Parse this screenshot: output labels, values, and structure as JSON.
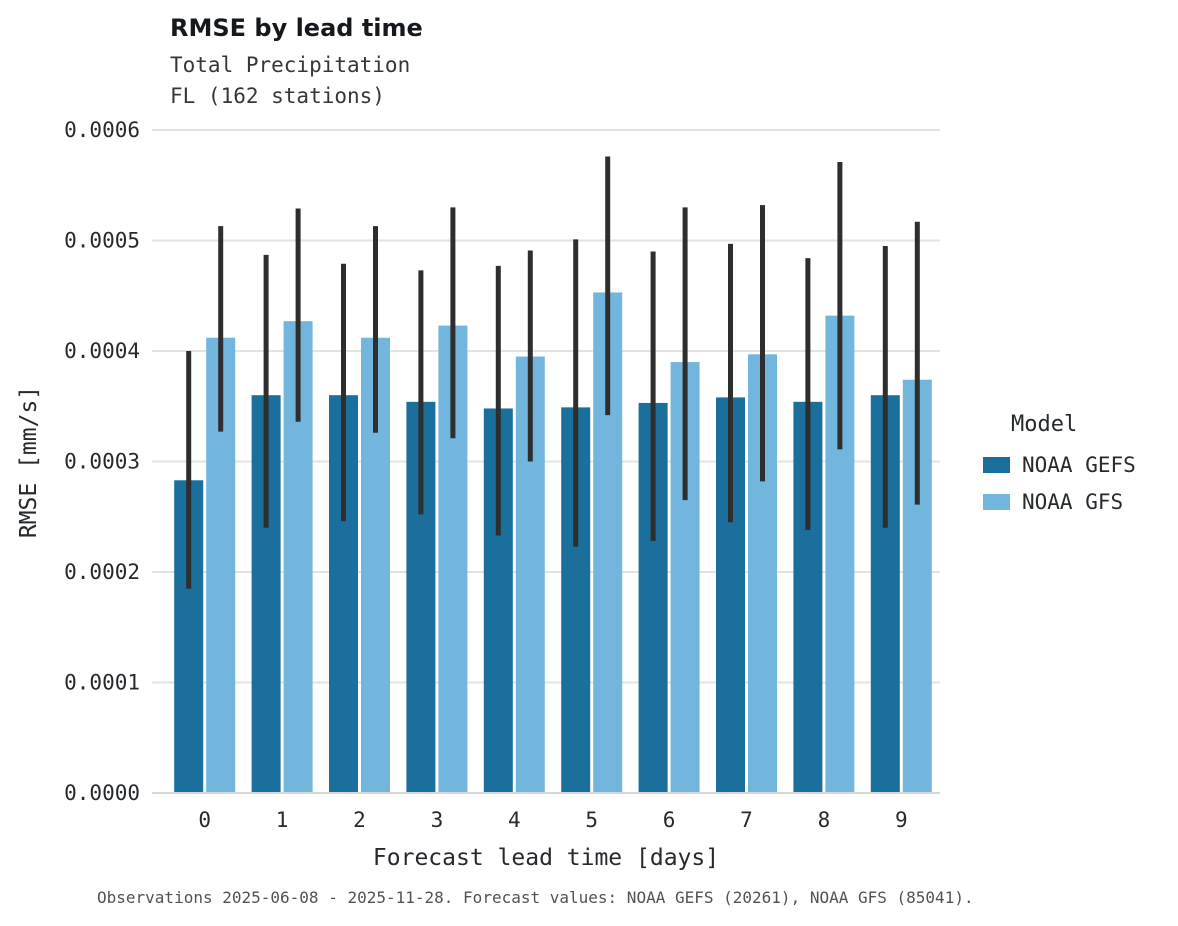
{
  "header": {
    "title": "RMSE by lead time",
    "subtitle1": "Total Precipitation",
    "subtitle2": "FL (162 stations)"
  },
  "legend": {
    "title": "Model",
    "entries": [
      {
        "label": "NOAA GEFS",
        "color": "#1a6f9c"
      },
      {
        "label": "NOAA GFS",
        "color": "#73b6dd"
      }
    ]
  },
  "caption": "Observations 2025-06-08 - 2025-11-28. Forecast values: NOAA GEFS (20261), NOAA GFS (85041).",
  "style": {
    "grid_color": "#e3e3e3",
    "axis_color": "#d6d6d6",
    "errorbar_color": "#2e2e2e",
    "background": "#ffffff"
  },
  "chart_data": {
    "type": "bar",
    "title": "RMSE by lead time",
    "xlabel": "Forecast lead time [days]",
    "ylabel": "RMSE [mm/s]",
    "categories": [
      "0",
      "1",
      "2",
      "3",
      "4",
      "5",
      "6",
      "7",
      "8",
      "9"
    ],
    "ylim": [
      0,
      0.0006
    ],
    "yticks": [
      0,
      0.0001,
      0.0002,
      0.0003,
      0.0004,
      0.0005,
      0.0006
    ],
    "grid": true,
    "legend_position": "right",
    "series": [
      {
        "name": "NOAA GEFS",
        "color": "#1a6f9c",
        "values": [
          0.000283,
          0.00036,
          0.00036,
          0.000354,
          0.000348,
          0.000349,
          0.000353,
          0.000358,
          0.000354,
          0.00036
        ],
        "err_low": [
          0.000185,
          0.00024,
          0.000246,
          0.000252,
          0.000233,
          0.000223,
          0.000228,
          0.000245,
          0.000238,
          0.00024
        ],
        "err_high": [
          0.0004,
          0.000487,
          0.000479,
          0.000473,
          0.000477,
          0.000501,
          0.00049,
          0.000497,
          0.000484,
          0.000495
        ]
      },
      {
        "name": "NOAA GFS",
        "color": "#73b6dd",
        "values": [
          0.000412,
          0.000427,
          0.000412,
          0.000423,
          0.000395,
          0.000453,
          0.00039,
          0.000397,
          0.000432,
          0.000374
        ],
        "err_low": [
          0.000327,
          0.000336,
          0.000326,
          0.000321,
          0.0003,
          0.000342,
          0.000265,
          0.000282,
          0.000311,
          0.000261
        ],
        "err_high": [
          0.000513,
          0.000529,
          0.000513,
          0.00053,
          0.000491,
          0.000576,
          0.00053,
          0.000532,
          0.000571,
          0.000517
        ]
      }
    ]
  }
}
